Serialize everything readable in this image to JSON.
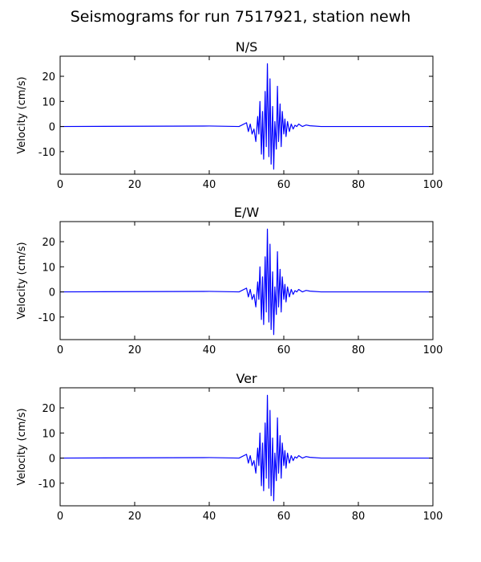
{
  "figure": {
    "title": "Seismograms for run 7517921, station newh"
  },
  "chart_data": [
    {
      "type": "line",
      "title": "N/S",
      "xlabel": "",
      "ylabel": "Velocity (cm/s)",
      "xlim": [
        0,
        100
      ],
      "ylim": [
        -19,
        28
      ],
      "xticks": [
        0,
        20,
        40,
        60,
        80,
        100
      ],
      "yticks": [
        -10,
        0,
        10,
        20
      ],
      "color": "#0000ff",
      "grid": false,
      "x": [
        0,
        40,
        48,
        50,
        50.5,
        51,
        51.5,
        52,
        52.5,
        53,
        53.3,
        53.6,
        54,
        54.3,
        54.6,
        55,
        55.3,
        55.6,
        56,
        56.3,
        56.6,
        57,
        57.3,
        57.6,
        58,
        58.3,
        58.6,
        59,
        59.3,
        59.6,
        60,
        60.3,
        60.6,
        61,
        61.5,
        62,
        62.5,
        63,
        63.5,
        64,
        65,
        66,
        67,
        70,
        100
      ],
      "y": [
        0,
        0.2,
        0,
        1.5,
        -2,
        1,
        -3,
        -1,
        -6,
        4,
        -3,
        10,
        -11,
        6,
        -13,
        14,
        -8,
        25,
        -12,
        19,
        -15,
        8,
        -17,
        2,
        -9,
        16,
        -6,
        9,
        -8,
        6,
        -3,
        3,
        -4,
        2,
        -2,
        1,
        -1,
        0.5,
        0,
        1,
        0,
        0.6,
        0.3,
        0,
        0
      ]
    },
    {
      "type": "line",
      "title": "E/W",
      "xlabel": "",
      "ylabel": "Velocity (cm/s)",
      "xlim": [
        0,
        100
      ],
      "ylim": [
        -19,
        28
      ],
      "xticks": [
        0,
        20,
        40,
        60,
        80,
        100
      ],
      "yticks": [
        -10,
        0,
        10,
        20
      ],
      "color": "#0000ff",
      "grid": false,
      "x": [
        0,
        40,
        48,
        50,
        50.5,
        51,
        51.5,
        52,
        52.5,
        53,
        53.3,
        53.6,
        54,
        54.3,
        54.6,
        55,
        55.3,
        55.6,
        56,
        56.3,
        56.6,
        57,
        57.3,
        57.6,
        58,
        58.3,
        58.6,
        59,
        59.3,
        59.6,
        60,
        60.3,
        60.6,
        61,
        61.5,
        62,
        62.5,
        63,
        63.5,
        64,
        65,
        66,
        67,
        70,
        100
      ],
      "y": [
        0,
        0.2,
        0,
        1.5,
        -2,
        1,
        -3,
        -1,
        -6,
        4,
        -3,
        10,
        -11,
        6,
        -13,
        14,
        -8,
        25,
        -12,
        19,
        -15,
        8,
        -17,
        2,
        -9,
        16,
        -6,
        9,
        -8,
        6,
        -3,
        3,
        -4,
        2,
        -2,
        1,
        -1,
        0.5,
        0,
        1,
        0,
        0.6,
        0.3,
        0,
        0
      ]
    },
    {
      "type": "line",
      "title": "Ver",
      "xlabel": "",
      "ylabel": "Velocity (cm/s)",
      "xlim": [
        0,
        100
      ],
      "ylim": [
        -19,
        28
      ],
      "xticks": [
        0,
        20,
        40,
        60,
        80,
        100
      ],
      "yticks": [
        -10,
        0,
        10,
        20
      ],
      "color": "#0000ff",
      "grid": false,
      "x": [
        0,
        40,
        48,
        50,
        50.5,
        51,
        51.5,
        52,
        52.5,
        53,
        53.3,
        53.6,
        54,
        54.3,
        54.6,
        55,
        55.3,
        55.6,
        56,
        56.3,
        56.6,
        57,
        57.3,
        57.6,
        58,
        58.3,
        58.6,
        59,
        59.3,
        59.6,
        60,
        60.3,
        60.6,
        61,
        61.5,
        62,
        62.5,
        63,
        63.5,
        64,
        65,
        66,
        67,
        70,
        100
      ],
      "y": [
        0,
        0.2,
        0,
        1.5,
        -2,
        1,
        -3,
        -1,
        -6,
        4,
        -3,
        10,
        -11,
        6,
        -13,
        14,
        -8,
        25,
        -12,
        19,
        -15,
        8,
        -17,
        2,
        -9,
        16,
        -6,
        9,
        -8,
        6,
        -3,
        3,
        -4,
        2,
        -2,
        1,
        -1,
        0.5,
        0,
        1,
        0,
        0.6,
        0.3,
        0,
        0
      ]
    }
  ]
}
